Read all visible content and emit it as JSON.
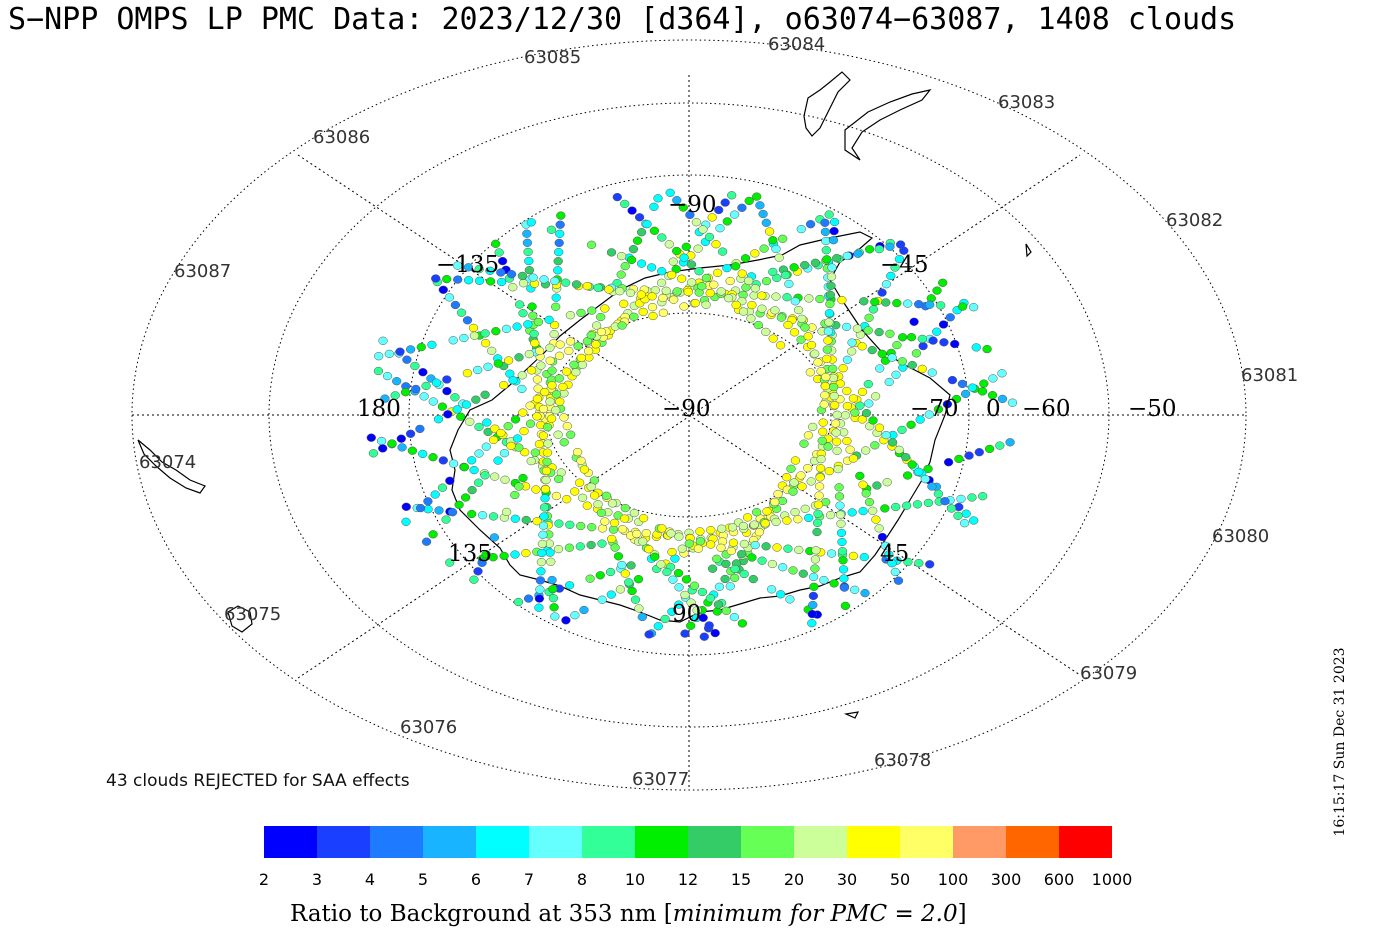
{
  "title": "S−NPP OMPS LP PMC Data: 2023/12/30 [d364], o63074−63087, 1408 clouds",
  "orbit_labels": [
    "63085",
    "63084",
    "63083",
    "63086",
    "63082",
    "63087",
    "63081",
    "63074",
    "63080",
    "63075",
    "63079",
    "63076",
    "63078",
    "63077"
  ],
  "grid_labels": [
    "−90",
    "−135",
    "−45",
    "180",
    "−90",
    "−70",
    "0",
    "−60",
    "−50",
    "135",
    "45",
    "90"
  ],
  "reject_note": "43 clouds REJECTED for SAA effects",
  "colorbar": {
    "colors": [
      "#0000ff",
      "#1a3fff",
      "#1e7aff",
      "#19b4ff",
      "#00ffff",
      "#66ffff",
      "#33ff99",
      "#00ee00",
      "#33cc66",
      "#66ff55",
      "#ccff99",
      "#ffff00",
      "#ffff66",
      "#ff9966",
      "#ff6600",
      "#ff0000"
    ],
    "ticks": [
      "2",
      "3",
      "4",
      "5",
      "6",
      "7",
      "8",
      "10",
      "12",
      "15",
      "20",
      "30",
      "50",
      "100",
      "300",
      "600",
      "1000"
    ]
  },
  "colorbar_label_main": "Ratio to Background at 353 nm [",
  "colorbar_label_italic": "minimum for PMC = 2.0",
  "colorbar_label_end": "]",
  "timestamp": "16:15:17 Sun Dec 31 2023"
}
